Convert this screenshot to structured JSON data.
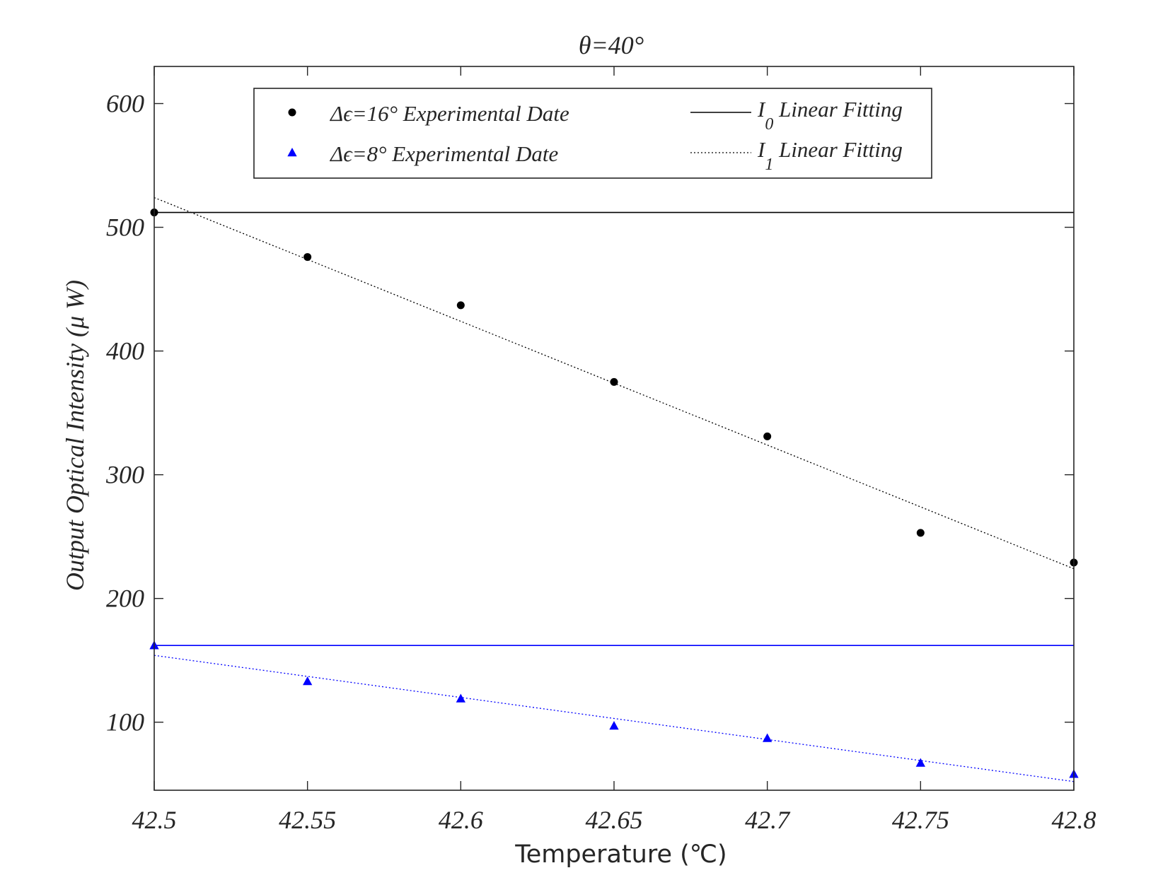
{
  "chart_data": {
    "type": "scatter",
    "title": "θ=40°",
    "xlabel": "Temperature (℃)",
    "ylabel": "Output Optical Intensity (μ W)",
    "xlim": [
      42.5,
      42.8
    ],
    "ylim": [
      45,
      630
    ],
    "xticks": [
      42.5,
      42.55,
      42.6,
      42.65,
      42.7,
      42.75,
      42.8
    ],
    "xtick_labels": [
      "42.5",
      "42.55",
      "42.6",
      "42.65",
      "42.7",
      "42.75",
      "42.8"
    ],
    "yticks": [
      100,
      200,
      300,
      400,
      500,
      600
    ],
    "ytick_labels": [
      "100",
      "200",
      "300",
      "400",
      "500",
      "600"
    ],
    "grid": false,
    "legend_position": "top",
    "series": [
      {
        "id": "exp16",
        "name": "Δϵ=16° Experimental Date",
        "kind": "marker",
        "marker": "circle",
        "color": "#000000",
        "x": [
          42.5,
          42.55,
          42.6,
          42.65,
          42.7,
          42.75,
          42.8
        ],
        "y": [
          512,
          476,
          437,
          375,
          331,
          253,
          229
        ]
      },
      {
        "id": "exp8",
        "name": "Δϵ=8° Experimental Date",
        "kind": "marker",
        "marker": "triangle",
        "color": "#0000ff",
        "x": [
          42.5,
          42.55,
          42.6,
          42.65,
          42.7,
          42.75,
          42.8
        ],
        "y": [
          162,
          133,
          119,
          97,
          87,
          67,
          58
        ]
      },
      {
        "id": "i0-16",
        "name": "I0 Linear Fitting",
        "kind": "line",
        "dash": "solid",
        "color": "#000000",
        "x": [
          42.5,
          42.8
        ],
        "y": [
          512,
          512
        ]
      },
      {
        "id": "i1-16",
        "name": "I1 Linear Fitting",
        "kind": "line",
        "dash": "dotted",
        "color": "#000000",
        "x": [
          42.5,
          42.8
        ],
        "y": [
          524,
          224
        ]
      },
      {
        "id": "i0-8",
        "name": "",
        "kind": "line",
        "dash": "solid",
        "color": "#0000ff",
        "x": [
          42.5,
          42.8
        ],
        "y": [
          162,
          162
        ]
      },
      {
        "id": "i1-8",
        "name": "",
        "kind": "line",
        "dash": "dotted",
        "color": "#0000ff",
        "x": [
          42.5,
          42.8
        ],
        "y": [
          154,
          52
        ]
      }
    ],
    "legend": {
      "left_entries": [
        {
          "label": "Δϵ=16° Experimental Date",
          "marker": "circle",
          "color": "#000000"
        },
        {
          "label": "Δϵ=8° Experimental Date",
          "marker": "triangle",
          "color": "#0000ff"
        }
      ],
      "right_entries": [
        {
          "label_main": "I",
          "label_sub": "0",
          "label_rest": " Linear Fitting",
          "dash": "solid",
          "color": "#000000"
        },
        {
          "label_main": "I",
          "label_sub": "1",
          "label_rest": " Linear Fitting",
          "dash": "dotted",
          "color": "#000000"
        }
      ]
    }
  }
}
